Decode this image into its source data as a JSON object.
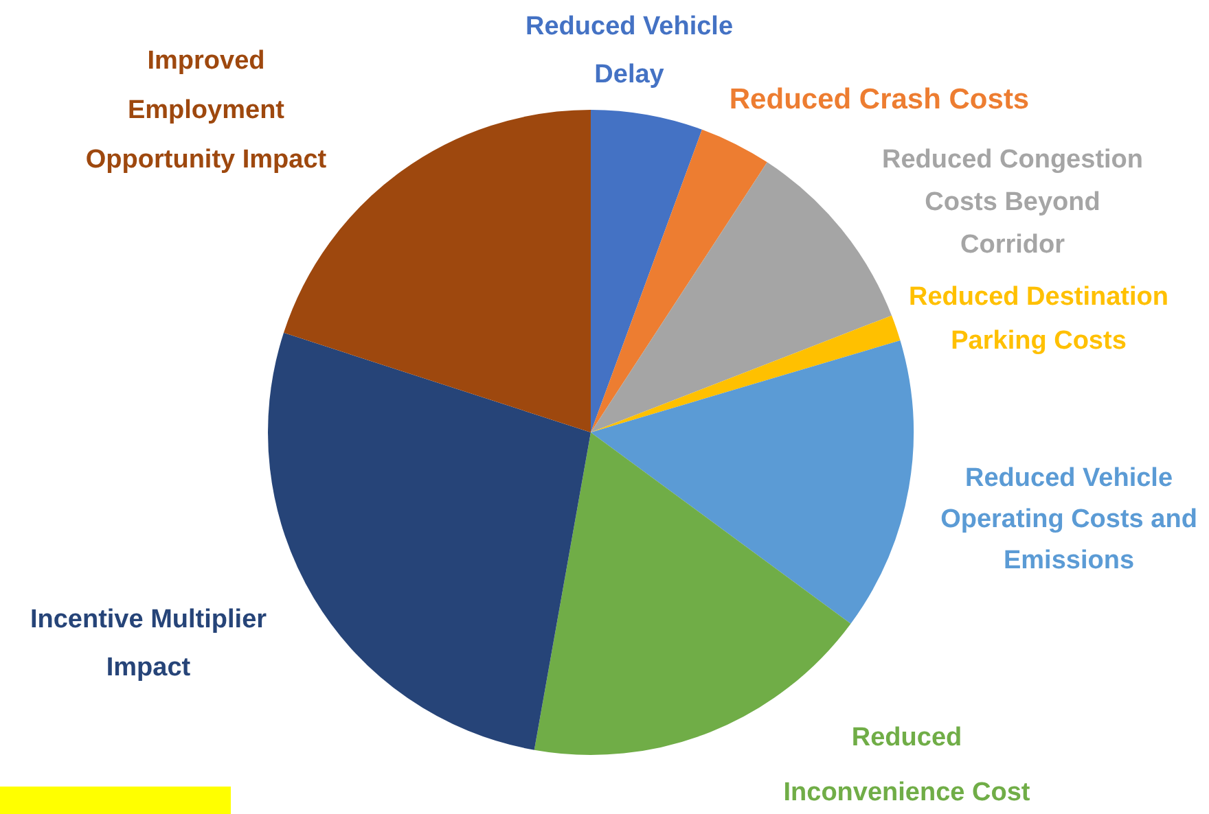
{
  "chart_data": {
    "type": "pie",
    "categories": [
      "Reduced Vehicle Delay",
      "Reduced Crash Costs",
      "Reduced Congestion Costs Beyond Corridor",
      "Reduced Destination Parking Costs",
      "Reduced Vehicle Operating Costs and Emissions",
      "Reduced Inconvenience Cost",
      "Incentive Multiplier Impact",
      "Improved Employment Opportunity Impact"
    ],
    "values": [
      5.6,
      3.6,
      9.9,
      1.3,
      14.7,
      17.7,
      27.2,
      20.0
    ],
    "colors": [
      "#4472c4",
      "#ed7d31",
      "#a5a5a5",
      "#ffc000",
      "#5b9bd5",
      "#70ad47",
      "#264478",
      "#9e480e"
    ]
  }
}
